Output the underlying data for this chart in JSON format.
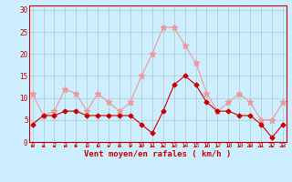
{
  "x": [
    0,
    1,
    2,
    3,
    4,
    5,
    6,
    7,
    8,
    9,
    10,
    11,
    12,
    13,
    14,
    15,
    16,
    17,
    18,
    19,
    20,
    21,
    22,
    23
  ],
  "avg": [
    4,
    6,
    6,
    7,
    7,
    6,
    6,
    6,
    6,
    6,
    4,
    2,
    7,
    13,
    15,
    13,
    9,
    7,
    7,
    6,
    6,
    4,
    1,
    4
  ],
  "gust": [
    11,
    6,
    7,
    12,
    11,
    7,
    11,
    9,
    7,
    9,
    15,
    20,
    26,
    26,
    22,
    18,
    11,
    7,
    9,
    11,
    9,
    5,
    5,
    9
  ],
  "avg_color": "#cc0000",
  "gust_color": "#ee9999",
  "bg_color": "#cceeff",
  "grid_color": "#aacccc",
  "xlabel": "Vent moyen/en rafales ( km/h )",
  "yticks": [
    0,
    5,
    10,
    15,
    20,
    25,
    30
  ],
  "ylim": [
    0,
    31
  ],
  "xlim": [
    -0.3,
    23.3
  ]
}
